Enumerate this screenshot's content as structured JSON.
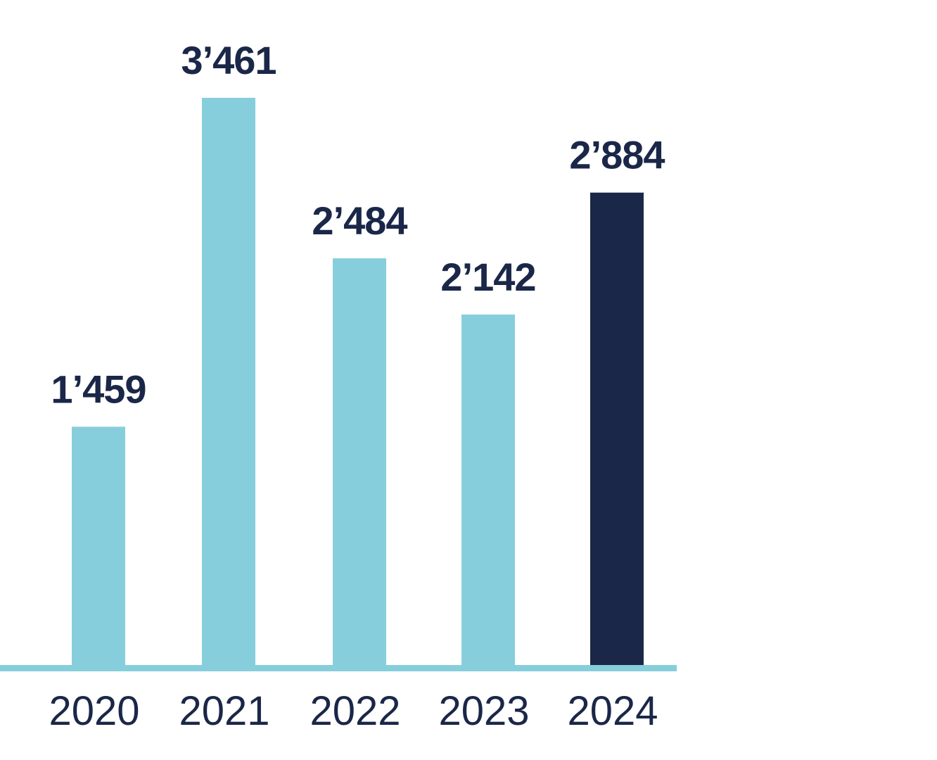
{
  "chart_data": {
    "type": "bar",
    "title": "",
    "xlabel": "",
    "ylabel": "",
    "categories": [
      "2020",
      "2021",
      "2022",
      "2023",
      "2024"
    ],
    "values": [
      1459,
      3461,
      2484,
      2142,
      2884
    ],
    "value_labels": [
      "1’459",
      "3’461",
      "2’484",
      "2’142",
      "2’884"
    ],
    "highlight_index": 4,
    "ylim": [
      0,
      3461
    ],
    "grid": false,
    "colors": {
      "bar": "#87cedc",
      "highlight": "#1b2748",
      "axis": "#87cedc",
      "text": "#1b2748"
    }
  }
}
